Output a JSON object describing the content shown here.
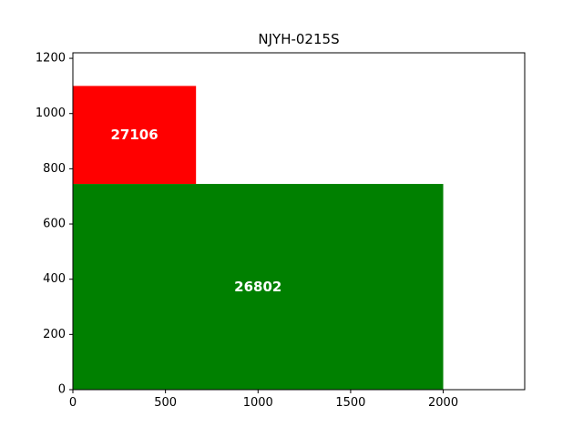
{
  "chart_data": {
    "type": "treemap",
    "title": "NJYH-0215S",
    "xlim": [
      0,
      2440
    ],
    "ylim": [
      0,
      1220
    ],
    "x_ticks": [
      0,
      500,
      1000,
      1500,
      2000
    ],
    "y_ticks": [
      0,
      200,
      400,
      600,
      800,
      1000,
      1200
    ],
    "grid": false,
    "rectangles": [
      {
        "label": "26802",
        "x": 0,
        "y": 0,
        "width": 2000,
        "height": 745,
        "color": "#008000"
      },
      {
        "label": "27106",
        "x": 0,
        "y": 745,
        "width": 665,
        "height": 355,
        "color": "#ff0000"
      }
    ]
  }
}
